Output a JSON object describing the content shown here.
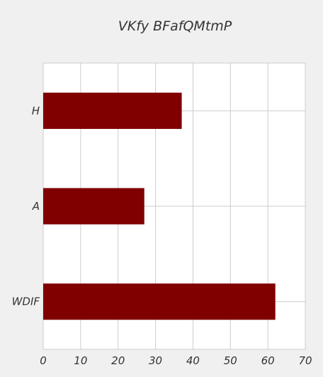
{
  "chart_data": {
    "type": "bar",
    "orientation": "horizontal",
    "title": "VKfy BFafQMtmP",
    "xlabel": "",
    "ylabel": "",
    "categories": [
      "H",
      "A",
      "WDIF"
    ],
    "values": [
      37,
      27,
      62
    ],
    "xlim": [
      0,
      70
    ],
    "xticks": [
      0,
      10,
      20,
      30,
      40,
      50,
      60,
      70
    ],
    "grid": true,
    "bar_color": "#800000",
    "background": "#f0f0f0",
    "plot_background": "#ffffff",
    "grid_color": "#cccccc"
  }
}
